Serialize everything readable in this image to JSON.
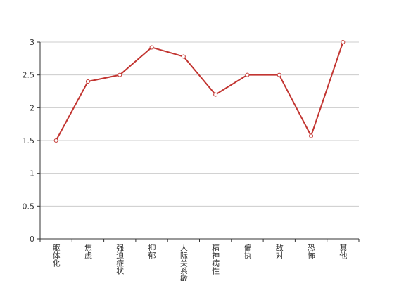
{
  "chart_data": {
    "type": "line",
    "categories": [
      "躯体化",
      "焦虑",
      "强迫症状",
      "抑郁",
      "人际关系敏感",
      "精神病性",
      "偏执",
      "敌对",
      "恐怖",
      "其他"
    ],
    "values": [
      1.5,
      2.4,
      2.5,
      2.92,
      2.78,
      2.2,
      2.5,
      2.5,
      1.57,
      3.0
    ],
    "color": "#c23531",
    "ylim": [
      0,
      3
    ],
    "yticks": [
      0,
      0.5,
      1,
      1.5,
      2,
      2.5,
      3
    ],
    "grid": true
  }
}
